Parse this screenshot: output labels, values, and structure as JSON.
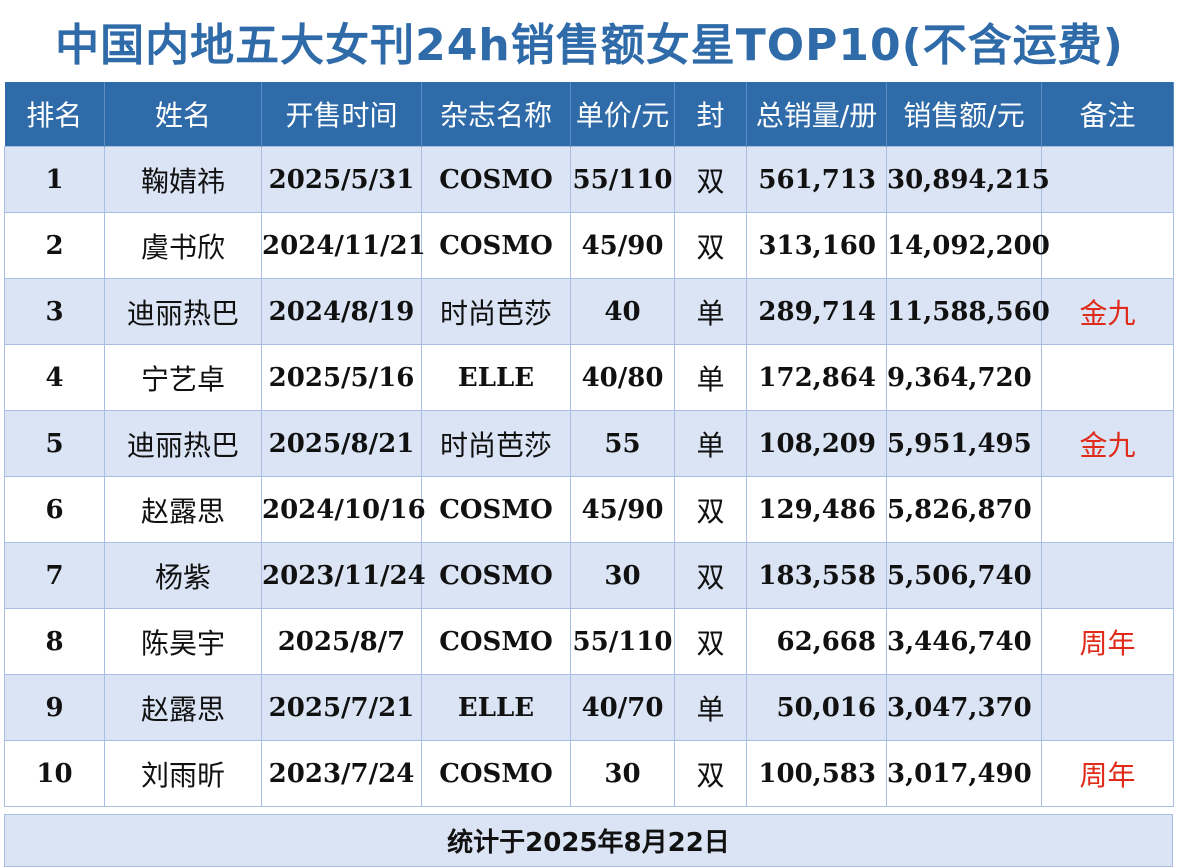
{
  "title": "中国内地五大女刊24h销售额女星TOP10(不含运费)",
  "headers": [
    "排名",
    "姓名",
    "开售时间",
    "杂志名称",
    "单价/元",
    "封",
    "总销量/册",
    "销售额/元",
    "备注"
  ],
  "rows": [
    {
      "rank": "1",
      "name": "鞠婧祎",
      "date": "2025/5/31",
      "magazine": "COSMO",
      "price": "55/110",
      "cover": "双",
      "sales": "561,713",
      "revenue": "30,894,215",
      "note": ""
    },
    {
      "rank": "2",
      "name": "虞书欣",
      "date": "2024/11/21",
      "magazine": "COSMO",
      "price": "45/90",
      "cover": "双",
      "sales": "313,160",
      "revenue": "14,092,200",
      "note": ""
    },
    {
      "rank": "3",
      "name": "迪丽热巴",
      "date": "2024/8/19",
      "magazine": "时尚芭莎",
      "price": "40",
      "cover": "单",
      "sales": "289,714",
      "revenue": "11,588,560",
      "note": "金九"
    },
    {
      "rank": "4",
      "name": "宁艺卓",
      "date": "2025/5/16",
      "magazine": "ELLE",
      "price": "40/80",
      "cover": "单",
      "sales": "172,864",
      "revenue": "9,364,720",
      "note": ""
    },
    {
      "rank": "5",
      "name": "迪丽热巴",
      "date": "2025/8/21",
      "magazine": "时尚芭莎",
      "price": "55",
      "cover": "单",
      "sales": "108,209",
      "revenue": "5,951,495",
      "note": "金九"
    },
    {
      "rank": "6",
      "name": "赵露思",
      "date": "2024/10/16",
      "magazine": "COSMO",
      "price": "45/90",
      "cover": "双",
      "sales": "129,486",
      "revenue": "5,826,870",
      "note": ""
    },
    {
      "rank": "7",
      "name": "杨紫",
      "date": "2023/11/24",
      "magazine": "COSMO",
      "price": "30",
      "cover": "双",
      "sales": "183,558",
      "revenue": "5,506,740",
      "note": ""
    },
    {
      "rank": "8",
      "name": "陈昊宇",
      "date": "2025/8/7",
      "magazine": "COSMO",
      "price": "55/110",
      "cover": "双",
      "sales": "62,668",
      "revenue": "3,446,740",
      "note": "周年"
    },
    {
      "rank": "9",
      "name": "赵露思",
      "date": "2025/7/21",
      "magazine": "ELLE",
      "price": "40/70",
      "cover": "单",
      "sales": "50,016",
      "revenue": "3,047,370",
      "note": ""
    },
    {
      "rank": "10",
      "name": "刘雨昕",
      "date": "2023/7/24",
      "magazine": "COSMO",
      "price": "30",
      "cover": "双",
      "sales": "100,583",
      "revenue": "3,017,490",
      "note": "周年"
    }
  ],
  "footer": "统计于2025年8月22日",
  "colors": {
    "accent": "#2f6ba8",
    "row_alt": "#dbe4f4",
    "note": "#e02a1a"
  }
}
